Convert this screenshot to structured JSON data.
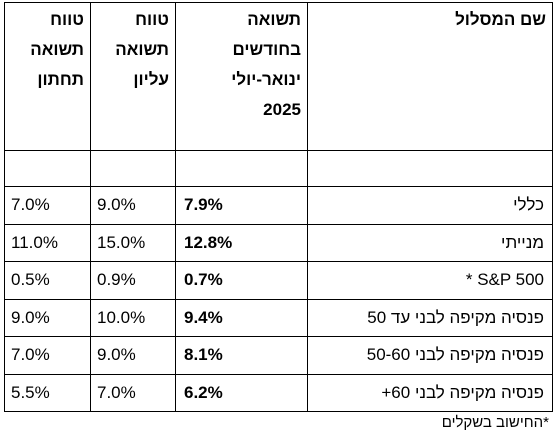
{
  "table": {
    "headers": {
      "name": "שם המסלול",
      "avg": "תשואה\nבחודשים\nינואר-יולי\n2025",
      "upper": "טווח\nתשואה\nעליון",
      "lower": "טווח\nתשואה\nתחתון"
    },
    "rows": [
      {
        "name": "כללי",
        "avg": "7.9%",
        "upper": "9.0%",
        "lower": "7.0%"
      },
      {
        "name": "מנייתי",
        "avg": "12.8%",
        "upper": "15.0%",
        "lower": "11.0%"
      },
      {
        "name": "S&P 500  *",
        "avg": "0.7%",
        "upper": "0.9%",
        "lower": "0.5%"
      },
      {
        "name": "פנסיה מקיפה לבני עד 50",
        "avg": "9.4%",
        "upper": "10.0%",
        "lower": "9.0%"
      },
      {
        "name": "פנסיה מקיפה לבני 50-60",
        "avg": "8.1%",
        "upper": "9.0%",
        "lower": "7.0%"
      },
      {
        "name": "פנסיה מקיפה לבני 60+",
        "avg": "6.2%",
        "upper": "7.0%",
        "lower": "5.5%"
      }
    ]
  },
  "footnote": "*החישוב בשקלים"
}
